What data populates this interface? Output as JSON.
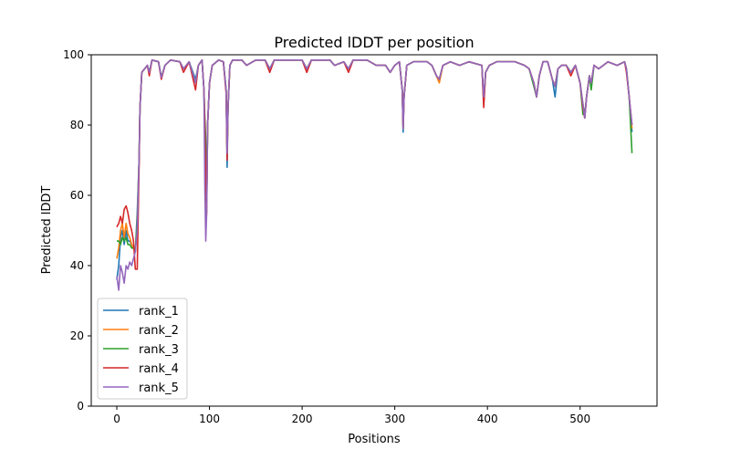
{
  "chart_data": {
    "type": "line",
    "title": "Predicted lDDT per position",
    "xlabel": "Positions",
    "ylabel": "Predicted lDDT",
    "xlim": [
      -27.6,
      583
    ],
    "ylim": [
      0,
      100
    ],
    "xticks": [
      0,
      100,
      200,
      300,
      400,
      500
    ],
    "yticks": [
      0,
      20,
      40,
      60,
      80,
      100
    ],
    "grid": false,
    "legend_position": "lower-left",
    "x": [
      0,
      2,
      4,
      6,
      8,
      10,
      12,
      14,
      16,
      18,
      20,
      22,
      24,
      25,
      27,
      30,
      33,
      35,
      38,
      45,
      48,
      52,
      58,
      68,
      72,
      78,
      85,
      88,
      92,
      94,
      95,
      96,
      97,
      98,
      100,
      103,
      110,
      115,
      118,
      119,
      120,
      122,
      125,
      135,
      140,
      150,
      160,
      165,
      170,
      200,
      205,
      210,
      230,
      235,
      245,
      250,
      255,
      270,
      280,
      290,
      295,
      300,
      305,
      308,
      309,
      310,
      313,
      320,
      335,
      340,
      345,
      348,
      352,
      360,
      370,
      380,
      394,
      396,
      398,
      402,
      410,
      430,
      440,
      445,
      450,
      453,
      456,
      460,
      465,
      470,
      473,
      476,
      480,
      485,
      490,
      495,
      500,
      503,
      505,
      507,
      510,
      512,
      515,
      520,
      525,
      530,
      540,
      548,
      550,
      553,
      556
    ],
    "series": [
      {
        "name": "rank_1",
        "color": "#1f77b4",
        "values": [
          36,
          40,
          48,
          50,
          46,
          50,
          47,
          47,
          46,
          45,
          44,
          55,
          70,
          85,
          95,
          96,
          97,
          95,
          98.5,
          98,
          93.5,
          97,
          98.5,
          98,
          96,
          98,
          93,
          97,
          98.5,
          90,
          75,
          65,
          55,
          80,
          92,
          97,
          98.5,
          98,
          90,
          68,
          85,
          97,
          98.5,
          98.5,
          97,
          98.5,
          98.5,
          96,
          98.5,
          98.5,
          96,
          98.5,
          98.5,
          97,
          98,
          96,
          98.5,
          98.5,
          97,
          97,
          95,
          97,
          98,
          90,
          78,
          88,
          97,
          98,
          98,
          97,
          94,
          93,
          97,
          98,
          97,
          98,
          97,
          86,
          95,
          97,
          98,
          98,
          97,
          96,
          92,
          88,
          94,
          98,
          98,
          93,
          88,
          96,
          97,
          97,
          95,
          97,
          92,
          86,
          82,
          88,
          94,
          92,
          97,
          96,
          97,
          98,
          97,
          98,
          96,
          88,
          78
        ]
      },
      {
        "name": "rank_2",
        "color": "#ff7f0e",
        "values": [
          42,
          45,
          50,
          52,
          48,
          52,
          49,
          48,
          46,
          45,
          44,
          52,
          70,
          85,
          95,
          96,
          97,
          95,
          98.5,
          98,
          93.5,
          97,
          98.5,
          98,
          96,
          98,
          92,
          97,
          98.5,
          90,
          80,
          52,
          55,
          80,
          92,
          97,
          98.5,
          98,
          90,
          72,
          85,
          97,
          98.5,
          98.5,
          97,
          98.5,
          98.5,
          96,
          98.5,
          98.5,
          96,
          98.5,
          98.5,
          97,
          98,
          96,
          98.5,
          98.5,
          97,
          97,
          95,
          97,
          98,
          90,
          79,
          88,
          97,
          98,
          98,
          97,
          94,
          92,
          97,
          98,
          97,
          98,
          97,
          87,
          95,
          97,
          98,
          98,
          97,
          96,
          92,
          88,
          94,
          98,
          98,
          93,
          91,
          96,
          97,
          97,
          95,
          97,
          92,
          86,
          82,
          88,
          94,
          92,
          97,
          96,
          97,
          98,
          97,
          98,
          96,
          88,
          79
        ]
      },
      {
        "name": "rank_3",
        "color": "#2ca02c",
        "values": [
          47,
          47,
          46,
          48,
          47,
          48,
          46,
          46,
          45,
          45,
          44,
          52,
          70,
          85,
          95,
          96,
          97,
          95,
          98.5,
          98,
          93.5,
          97,
          98.5,
          98,
          96,
          98,
          92,
          97,
          98.5,
          90,
          82,
          76,
          58,
          80,
          92,
          97,
          98.5,
          98,
          90,
          72,
          85,
          97,
          98.5,
          98.5,
          97,
          98.5,
          98.5,
          96,
          98.5,
          98.5,
          96,
          98.5,
          98.5,
          97,
          98,
          96,
          98.5,
          98.5,
          97,
          97,
          95,
          97,
          98,
          90,
          79,
          88,
          97,
          98,
          98,
          97,
          94,
          93,
          97,
          98,
          97,
          98,
          97,
          87,
          95,
          97,
          98,
          98,
          97,
          96,
          91,
          88,
          94,
          98,
          98,
          93,
          91,
          96,
          97,
          97,
          95,
          97,
          92,
          83,
          83,
          88,
          94,
          90,
          97,
          96,
          97,
          98,
          97,
          98,
          96,
          88,
          72
        ]
      },
      {
        "name": "rank_4",
        "color": "#d62728",
        "values": [
          51,
          52,
          54,
          52,
          56,
          57,
          55,
          52,
          50,
          47,
          39,
          39,
          68,
          85,
          95,
          96,
          97,
          94,
          98.5,
          98,
          93,
          97,
          98.5,
          98,
          95,
          98,
          90,
          97,
          98.5,
          90,
          80,
          64,
          58,
          80,
          92,
          97,
          98.5,
          98,
          89,
          70,
          85,
          97,
          98.5,
          98.5,
          97,
          98.5,
          98.5,
          95,
          98.5,
          98.5,
          95,
          98.5,
          98.5,
          97,
          98,
          95,
          98.5,
          98.5,
          97,
          97,
          95,
          97,
          98,
          90,
          79,
          88,
          97,
          98,
          98,
          97,
          94,
          93,
          97,
          98,
          97,
          98,
          97,
          85,
          95,
          97,
          98,
          98,
          97,
          96,
          92,
          88,
          94,
          98,
          98,
          93,
          91,
          96,
          97,
          97,
          94,
          97,
          92,
          85,
          82,
          88,
          94,
          92,
          97,
          96,
          97,
          98,
          97,
          98,
          95,
          88,
          80
        ]
      },
      {
        "name": "rank_5",
        "color": "#9467bd",
        "values": [
          37,
          33,
          40,
          38,
          35,
          40,
          39,
          41,
          40,
          42,
          44,
          50,
          70,
          85,
          95,
          96,
          97,
          95,
          98.5,
          98,
          93.5,
          97,
          98.5,
          98,
          96,
          98,
          92,
          97,
          98.5,
          90,
          62,
          47,
          55,
          80,
          92,
          97,
          98.5,
          98,
          90,
          72,
          85,
          97,
          98.5,
          98.5,
          97,
          98.5,
          98.5,
          96,
          98.5,
          98.5,
          96,
          98.5,
          98.5,
          97,
          98,
          96,
          98.5,
          98.5,
          97,
          97,
          95,
          97,
          98,
          90,
          79,
          88,
          97,
          98,
          98,
          97,
          94,
          93,
          97,
          98,
          97,
          98,
          97,
          88,
          95,
          97,
          98,
          98,
          97,
          96,
          92,
          88,
          94,
          98,
          98,
          93,
          91,
          96,
          97,
          97,
          95,
          97,
          92,
          86,
          82,
          88,
          94,
          92,
          97,
          96,
          97,
          98,
          97,
          98,
          96,
          88,
          80
        ]
      }
    ]
  }
}
